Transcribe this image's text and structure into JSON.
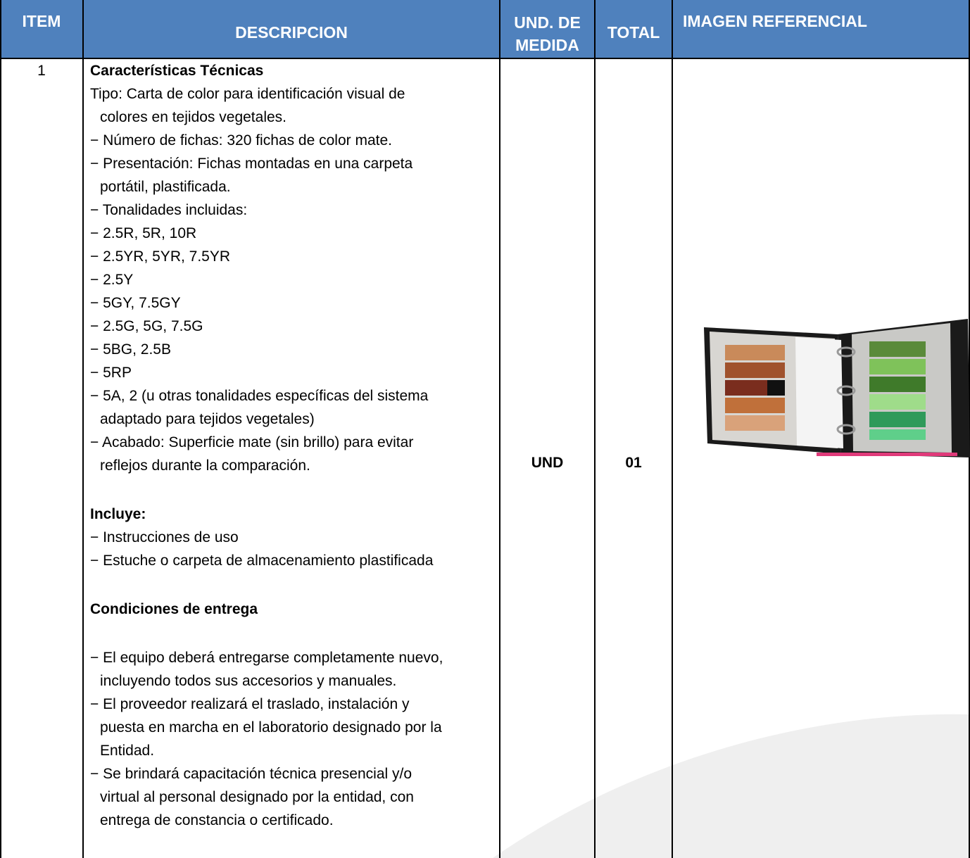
{
  "table": {
    "headers": {
      "item": "ITEM",
      "description": "DESCRIPCION",
      "unit": [
        "UND. DE",
        "MEDIDA"
      ],
      "total": "TOTAL",
      "image": "IMAGEN REFERENCIAL"
    },
    "rows": [
      {
        "item": "1",
        "unit": "UND",
        "total": "01",
        "description": [
          {
            "heading": "Características Técnicas",
            "items": [
              [
                "Tipo: Carta de color para identificación visual de",
                "colores en tejidos vegetales."
              ],
              [
                "− Número de fichas: 320 fichas de color mate."
              ],
              [
                "− Presentación: Fichas montadas en una carpeta",
                "portátil, plastificada."
              ],
              [
                "− Tonalidades incluidas:"
              ],
              [
                "− 2.5R, 5R, 10R"
              ],
              [
                "− 2.5YR, 5YR, 7.5YR"
              ],
              [
                "− 2.5Y"
              ],
              [
                "− 5GY, 7.5GY"
              ],
              [
                "− 2.5G, 5G, 7.5G"
              ],
              [
                "− 5BG, 2.5B"
              ],
              [
                "− 5RP"
              ],
              [
                "− 5A, 2 (u otras tonalidades específicas del sistema",
                "adaptado para tejidos vegetales)"
              ],
              [
                "− Acabado: Superficie mate (sin brillo) para evitar",
                "reflejos durante la comparación."
              ]
            ]
          },
          {
            "heading": "Incluye:",
            "items": [
              [
                "− Instrucciones de uso"
              ],
              [
                "− Estuche o carpeta de almacenamiento plastificada"
              ]
            ]
          },
          {
            "heading": "Condiciones de entrega",
            "items": [
              [
                "− El equipo deberá entregarse completamente nuevo,",
                "incluyendo todos sus accesorios y manuales."
              ],
              [
                "− El proveedor realizará el traslado, instalación y",
                "puesta en marcha en el laboratorio designado por la",
                "Entidad."
              ],
              [
                "− Se brindará capacitación técnica presencial y/o",
                "virtual al personal designado por la entidad, con",
                "entrega de constancia o certificado."
              ]
            ]
          }
        ]
      }
    ]
  }
}
